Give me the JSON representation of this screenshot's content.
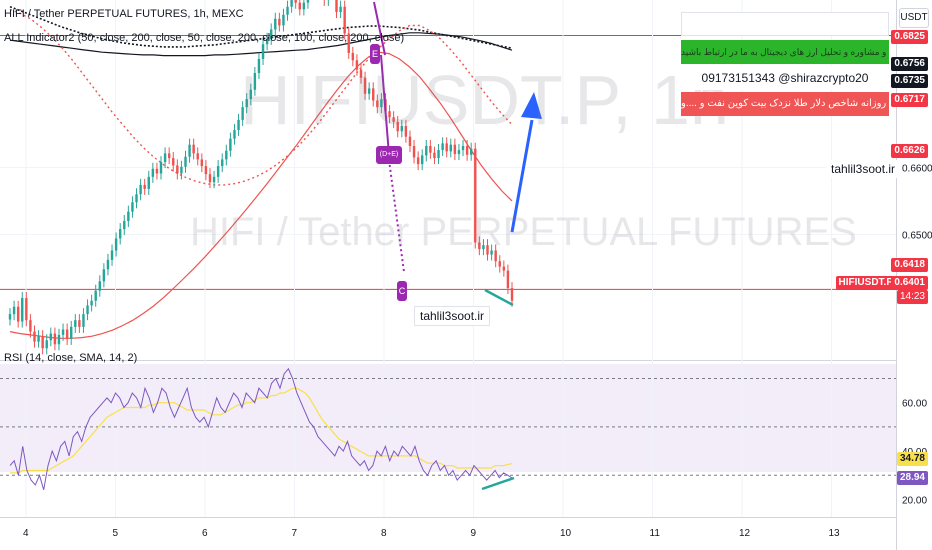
{
  "header": {
    "title": "HIFI / Tether PERPETUAL FUTURES, 1h, MEXC",
    "indicator_label": "ALL Indicator2 (50, close, 200, close, 50, close, 200, close, 100, close, 200, close)",
    "rsi_label": "RSI (14, close, SMA, 14, 2)",
    "currency_button": "USDT"
  },
  "watermark": {
    "symbol": "HIFIUSDT.P, 1h",
    "name": "HIFI / Tether PERPETUAL FUTURES"
  },
  "info_box": {
    "line1": "",
    "line2": "جهت آموزش و مشاوره و تحلیل ارز های دیجیتال به ما در ارتباط باشید",
    "line3": "09173151343  @shirazcrypto20",
    "line4": "تحلیل روزانه شاخص دلار طلا نزدک بیت کوین نفت و ....و"
  },
  "site_labels": {
    "right": "tahlil3soot.ir",
    "bottom": "tahlil3soot.ir"
  },
  "markers": {
    "top": "E",
    "middle": "(D+E)",
    "bottom": "C"
  },
  "price_tags": {
    "t1": "0.6825",
    "t2": "0.6756",
    "t3": "0.6735",
    "t4": "0.6717",
    "t5": "0.6626",
    "t6": "0.6418",
    "symbol": "HIFIUSDT.P",
    "last": "0.6401",
    "countdown": "14:23"
  },
  "colors": {
    "up": "#26a69a",
    "down": "#ef5350",
    "rsi": "#7e57c2",
    "rsi_ma": "#f9e04b",
    "hline": "#f23645",
    "arrow": "#2962ff",
    "green_box": "#2bb52b",
    "red_box": "#f05555"
  },
  "chart_data": [
    {
      "type": "candlestick",
      "title": "HIFI / Tether PERPETUAL FUTURES, 1h, MEXC",
      "y_ticks": [
        "0.6600",
        "0.6500"
      ],
      "ylim": [
        0.632,
        0.685
      ],
      "horizontal_levels": [
        0.6797,
        0.6418
      ],
      "series_note": "close prices, hourly",
      "close": [
        0.6381,
        0.6392,
        0.637,
        0.6405,
        0.6372,
        0.6355,
        0.634,
        0.6348,
        0.633,
        0.6342,
        0.6352,
        0.6336,
        0.635,
        0.6358,
        0.6344,
        0.6362,
        0.6372,
        0.6362,
        0.6381,
        0.6394,
        0.6401,
        0.6416,
        0.643,
        0.6448,
        0.6462,
        0.6476,
        0.6494,
        0.6508,
        0.652,
        0.6534,
        0.6548,
        0.656,
        0.6574,
        0.6568,
        0.6586,
        0.6598,
        0.6591,
        0.6608,
        0.6621,
        0.6614,
        0.6603,
        0.6591,
        0.6601,
        0.6616,
        0.6634,
        0.6621,
        0.6612,
        0.6602,
        0.659,
        0.6578,
        0.6586,
        0.6602,
        0.6612,
        0.6625,
        0.6643,
        0.6656,
        0.6671,
        0.669,
        0.6702,
        0.6716,
        0.6741,
        0.6762,
        0.6784,
        0.6792,
        0.6806,
        0.6822,
        0.6812,
        0.6828,
        0.684,
        0.6852,
        0.6846,
        0.6836,
        0.6846,
        0.6861,
        0.6876,
        0.688,
        0.6868,
        0.685,
        0.688,
        0.687,
        0.6832,
        0.684,
        0.68,
        0.6771,
        0.676,
        0.6746,
        0.6734,
        0.671,
        0.6718,
        0.67,
        0.669,
        0.6702,
        0.6684,
        0.6675,
        0.6668,
        0.6654,
        0.6662,
        0.6646,
        0.6632,
        0.6615,
        0.6605,
        0.6618,
        0.6632,
        0.6622,
        0.6614,
        0.6626,
        0.6636,
        0.6624,
        0.6634,
        0.662,
        0.6626,
        0.6632,
        0.6619,
        0.6628,
        0.6488,
        0.6478,
        0.6484,
        0.647,
        0.6476,
        0.646,
        0.6452,
        0.6446,
        0.642,
        0.6401
      ],
      "ma_fast": [
        0.6355,
        0.6352,
        0.635,
        0.6348,
        0.6346,
        0.6345,
        0.6345,
        0.6346,
        0.6348,
        0.6352,
        0.6357,
        0.6364,
        0.6372,
        0.6382,
        0.6393,
        0.6406,
        0.642,
        0.6435,
        0.645,
        0.6466,
        0.6483,
        0.65,
        0.6518,
        0.6536,
        0.6555,
        0.6574,
        0.6594,
        0.6614,
        0.6634,
        0.6655,
        0.6676,
        0.6697,
        0.6717,
        0.6736,
        0.6752,
        0.6765,
        0.6772,
        0.677,
        0.6762,
        0.675,
        0.6735,
        0.6716,
        0.6696,
        0.6674,
        0.665,
        0.6626,
        0.6603,
        0.6583,
        0.6565,
        0.655
      ],
      "ma_dotted": [
        0.6836,
        0.683,
        0.6822,
        0.681,
        0.6796,
        0.678,
        0.6762,
        0.6742,
        0.6722,
        0.6702,
        0.6682,
        0.6664,
        0.6646,
        0.663,
        0.6616,
        0.6604,
        0.6594,
        0.6586,
        0.658,
        0.6576,
        0.6574,
        0.6574,
        0.6576,
        0.658,
        0.6586,
        0.6594,
        0.6604,
        0.6616,
        0.663,
        0.6646,
        0.6664,
        0.6684,
        0.6704,
        0.6724,
        0.6744,
        0.6762,
        0.6778,
        0.6792,
        0.6804,
        0.6812,
        0.6812,
        0.6804,
        0.6792,
        0.6776,
        0.6758,
        0.6738,
        0.6718,
        0.6698,
        0.668,
        0.6664
      ],
      "ma_slow": [
        0.679,
        0.6788,
        0.6786,
        0.6784,
        0.6782,
        0.678,
        0.6778,
        0.6776,
        0.6774,
        0.6772,
        0.6771,
        0.677,
        0.6769,
        0.6768,
        0.6768,
        0.6767,
        0.6767,
        0.6767,
        0.6767,
        0.6767,
        0.6768,
        0.6768,
        0.6769,
        0.677,
        0.6771,
        0.6772,
        0.6773,
        0.6774,
        0.6775,
        0.6776,
        0.6778,
        0.678,
        0.6782,
        0.6785,
        0.6788,
        0.6791,
        0.6794,
        0.6797,
        0.6799,
        0.6801,
        0.6801,
        0.68,
        0.6799,
        0.6797,
        0.6795,
        0.6792,
        0.6789,
        0.6785,
        0.678,
        0.6775
      ],
      "ma_slow_dotted": [
        0.684,
        0.6834,
        0.6828,
        0.6822,
        0.6816,
        0.681,
        0.6805,
        0.68,
        0.6796,
        0.6792,
        0.6789,
        0.6786,
        0.6784,
        0.6782,
        0.6781,
        0.678,
        0.678,
        0.678,
        0.6781,
        0.6782,
        0.6783,
        0.6785,
        0.6787,
        0.6789,
        0.6791,
        0.6793,
        0.6795,
        0.6797,
        0.6799,
        0.6801,
        0.6803,
        0.6805,
        0.6807,
        0.6809,
        0.681,
        0.6811,
        0.6811,
        0.681,
        0.6809,
        0.6807,
        0.6805,
        0.6802,
        0.6799,
        0.6796,
        0.6793,
        0.679,
        0.6787,
        0.6784,
        0.6781,
        0.6778
      ]
    },
    {
      "type": "line",
      "title": "RSI (14, close, SMA, 14, 2)",
      "y_ticks": [
        "60.00",
        "40.00",
        "20.00"
      ],
      "ylim": [
        14,
        76
      ],
      "horizontal_levels": [
        70,
        50,
        30
      ],
      "last_values": [
        "34.78",
        "28.94"
      ],
      "rsi": [
        34,
        36,
        30,
        42,
        32,
        28,
        26,
        30,
        24,
        34,
        40,
        36,
        42,
        44,
        38,
        46,
        48,
        44,
        50,
        54,
        56,
        58,
        60,
        62,
        60,
        64,
        62,
        58,
        60,
        64,
        62,
        58,
        66,
        62,
        56,
        60,
        66,
        64,
        58,
        54,
        58,
        62,
        66,
        58,
        54,
        52,
        54,
        50,
        56,
        62,
        58,
        56,
        60,
        64,
        62,
        58,
        64,
        62,
        60,
        66,
        64,
        62,
        68,
        70,
        66,
        72,
        74,
        70,
        64,
        60,
        56,
        52,
        50,
        46,
        44,
        42,
        40,
        38,
        42,
        40,
        44,
        38,
        36,
        34,
        36,
        32,
        34,
        40,
        38,
        42,
        36,
        40,
        38,
        42,
        40,
        38,
        42,
        36,
        32,
        30,
        34,
        36,
        32,
        34,
        30,
        32,
        28,
        30,
        32,
        30,
        34,
        32,
        30,
        28,
        30,
        32,
        29,
        31,
        30,
        28.94
      ],
      "rsi_ma": [
        31,
        31,
        31,
        32,
        32,
        32,
        32,
        32,
        32,
        32,
        33,
        34,
        35,
        36,
        37,
        38,
        40,
        42,
        44,
        46,
        48,
        50,
        52,
        54,
        55,
        56,
        57,
        58,
        58,
        58,
        58,
        58,
        58,
        59,
        59,
        60,
        60,
        60,
        60,
        60,
        59,
        58,
        57,
        57,
        57,
        57,
        57,
        56,
        55,
        55,
        55,
        56,
        57,
        58,
        59,
        59,
        60,
        60,
        61,
        62,
        62,
        62,
        63,
        63,
        64,
        64,
        65,
        66,
        66,
        65,
        64,
        62,
        59,
        56,
        53,
        51,
        49,
        47,
        45,
        44,
        43,
        42,
        41,
        40,
        39,
        38,
        38,
        38,
        38,
        38,
        38,
        38,
        38,
        38,
        38,
        38,
        38,
        37,
        36,
        35,
        35,
        35,
        35,
        34,
        34,
        34,
        33,
        33,
        33,
        33,
        33,
        33,
        33,
        33,
        33,
        34,
        34,
        34,
        34.5,
        34.78
      ]
    }
  ],
  "x_axis": {
    "labels": [
      "4",
      "5",
      "6",
      "7",
      "8",
      "9",
      "10",
      "11",
      "12",
      "13"
    ]
  }
}
